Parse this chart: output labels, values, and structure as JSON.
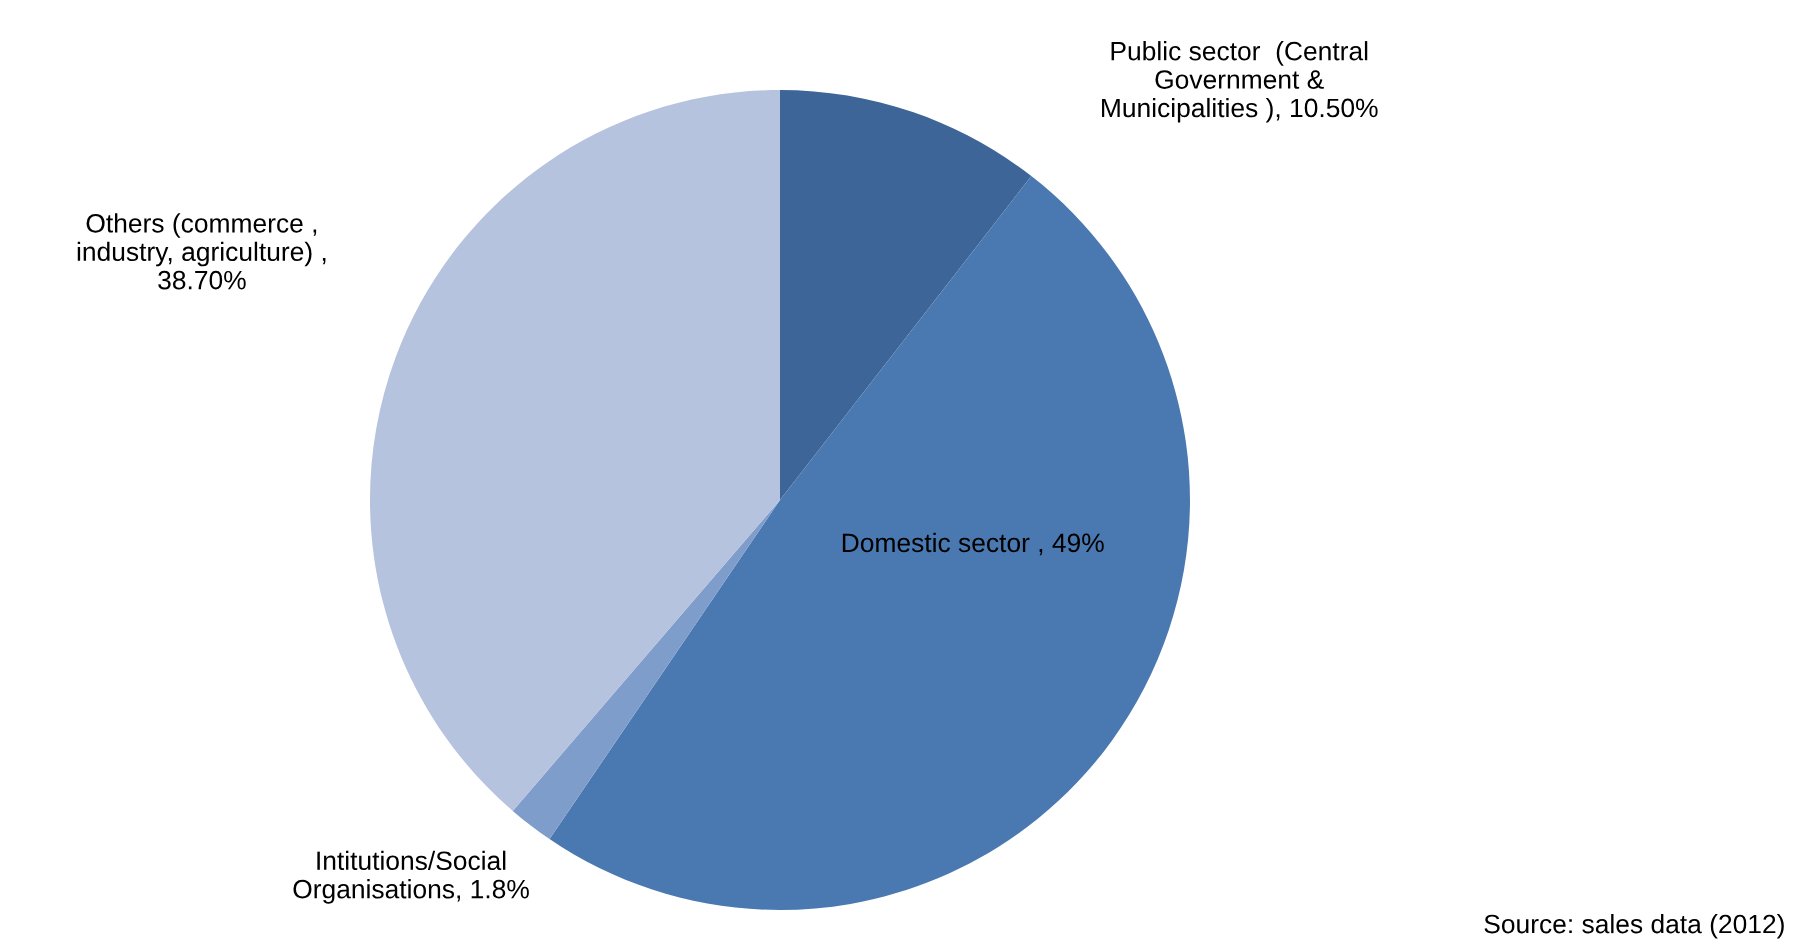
{
  "chart_data": {
    "type": "pie",
    "categories": [
      "Public sector  (Central\nGovernment &\nMunicipalities ), 10.50%",
      "Domestic sector , 49%",
      "Intitutions/Social\nOrganisations, 1.8%",
      "Others (commerce ,\nindustry, agriculture) ,\n38.70%"
    ],
    "values": [
      10.5,
      49,
      1.8,
      38.7
    ],
    "colors": [
      "#3d6597",
      "#4a79b1",
      "#7f9dcb",
      "#b5c3de"
    ],
    "annotations": [
      "Source: sales data (2012)"
    ]
  }
}
